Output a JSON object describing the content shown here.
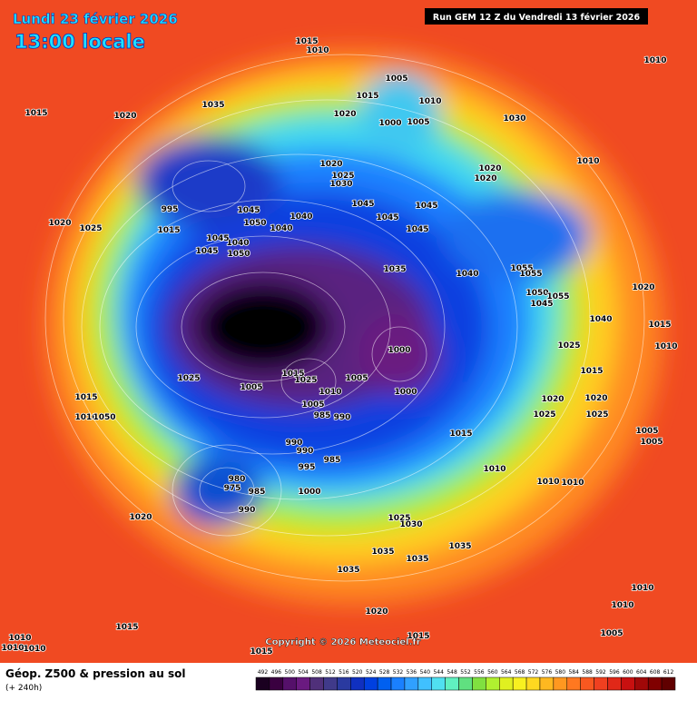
{
  "header": {
    "date": "Lundi 23 février 2026",
    "time": "13:00 locale",
    "run": "Run GEM 12 Z du Vendredi 13 février 2026"
  },
  "footer": {
    "title": "Géop. Z500 & pression au sol",
    "subtitle": "(+ 240h)",
    "copyright": "Copyright © 2026 Meteociel.fr"
  },
  "legend": {
    "ticks": [
      492,
      496,
      500,
      504,
      508,
      512,
      516,
      520,
      524,
      528,
      532,
      536,
      540,
      544,
      548,
      552,
      556,
      560,
      564,
      568,
      572,
      576,
      580,
      584,
      588,
      592,
      596,
      600,
      604,
      608,
      612
    ],
    "colors": [
      "#1a0020",
      "#3a0040",
      "#55106a",
      "#6a1a80",
      "#50307a",
      "#403a8a",
      "#2a3aa0",
      "#1030c0",
      "#0040e0",
      "#0060f0",
      "#1a80ff",
      "#30a0ff",
      "#40c0ff",
      "#50e0f0",
      "#60f0c0",
      "#60e080",
      "#80e040",
      "#b0f030",
      "#e0f020",
      "#f8f020",
      "#ffd820",
      "#ffb820",
      "#ff9820",
      "#ff7820",
      "#f85820",
      "#f04020",
      "#e02818",
      "#c81010",
      "#a00808",
      "#800000",
      "#600000"
    ]
  },
  "isobar_labels": [
    "1015",
    "1010",
    "1015",
    "1020",
    "1035",
    "1005",
    "1015",
    "1010",
    "1020",
    "1000",
    "1005",
    "1030",
    "1010",
    "1010",
    "1020",
    "1020",
    "1020",
    "1025",
    "1030",
    "1045",
    "1050",
    "1040",
    "1040",
    "1045",
    "1045",
    "1045",
    "1045",
    "1040",
    "1035",
    "1055",
    "1055",
    "1050",
    "1055",
    "1045",
    "1020",
    "1025",
    "1015",
    "995",
    "1045",
    "1050",
    "1040",
    "1045",
    "1025",
    "1005",
    "1015",
    "1025",
    "1010",
    "1005",
    "1000",
    "1000",
    "1005",
    "985",
    "990",
    "990",
    "990",
    "995",
    "985",
    "1000",
    "980",
    "975",
    "985",
    "990",
    "1015",
    "1010",
    "1050",
    "1015",
    "1010",
    "1020",
    "1025",
    "1020",
    "1025",
    "1015",
    "1025",
    "1040",
    "1015",
    "1010",
    "1020",
    "1005",
    "1005",
    "1010",
    "1010",
    "1020",
    "1025",
    "1030",
    "1035",
    "1035",
    "1035",
    "1035",
    "1010",
    "1010",
    "1005",
    "1020",
    "1015",
    "1010",
    "1010",
    "1010",
    "1015",
    "1015"
  ]
}
